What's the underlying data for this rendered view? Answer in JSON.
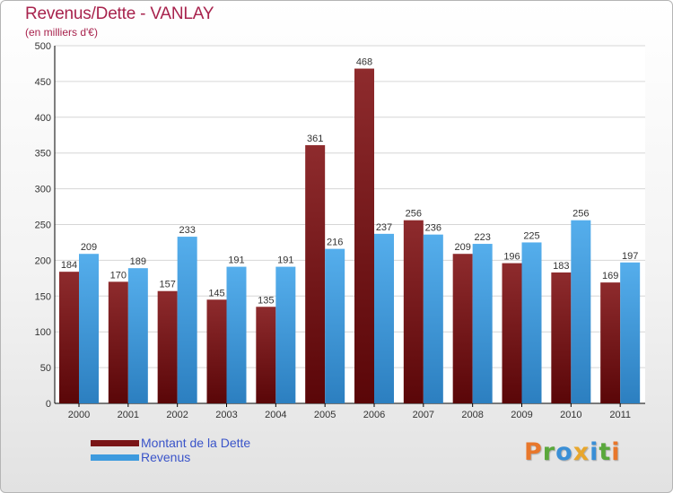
{
  "header": {
    "title": "Revenus/Dette - VANLAY",
    "subtitle": "(en milliers d'€)"
  },
  "colors": {
    "title": "#a8234d",
    "dette": "#7a1416",
    "revenus": "#3d9ade",
    "legend_text": "#3a54c9"
  },
  "chart_data": {
    "type": "bar",
    "categories": [
      "2000",
      "2001",
      "2002",
      "2003",
      "2004",
      "2005",
      "2006",
      "2007",
      "2008",
      "2009",
      "2010",
      "2011"
    ],
    "series": [
      {
        "name": "Montant de la Dette",
        "values": [
          184,
          170,
          157,
          145,
          135,
          361,
          468,
          256,
          209,
          196,
          183,
          169
        ]
      },
      {
        "name": "Revenus",
        "values": [
          209,
          189,
          233,
          191,
          191,
          216,
          237,
          236,
          223,
          225,
          256,
          197
        ]
      }
    ],
    "title": "Revenus/Dette - VANLAY",
    "ylim": [
      0,
      500
    ],
    "yticks": [
      0,
      50,
      100,
      150,
      200,
      250,
      300,
      350,
      400,
      450,
      500
    ],
    "grid": true,
    "legend_position": "bottom-left"
  },
  "legend": {
    "items": [
      {
        "label": "Montant de la Dette",
        "color": "#7a1416"
      },
      {
        "label": "Revenus",
        "color": "#3d9ade"
      }
    ]
  },
  "logo": {
    "text": "Proxiti",
    "letter_colors": [
      "#e8772b",
      "#5aa83c",
      "#3a8fd6",
      "#e8a62b",
      "#3a8fd6",
      "#5aa83c",
      "#e8772b"
    ]
  }
}
